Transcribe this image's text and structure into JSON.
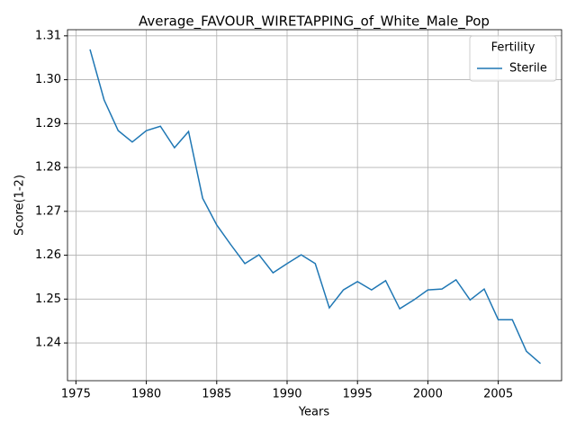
{
  "chart_data": {
    "type": "line",
    "title": "Average_FAVOUR_WIRETAPPING_of_White_Male_Pop",
    "x_label": "Years",
    "y_label": "Score(1-2)",
    "x": [
      1976,
      1977,
      1978,
      1979,
      1980,
      1981,
      1982,
      1983,
      1984,
      1985,
      1986,
      1987,
      1988,
      1989,
      1990,
      1991,
      1992,
      1993,
      1994,
      1995,
      1996,
      1997,
      1998,
      1999,
      2000,
      2001,
      2002,
      2003,
      2004,
      2005,
      2006,
      2007,
      2008
    ],
    "series": [
      {
        "name": "Sterile",
        "color": "#1f77b4",
        "values": [
          1.3069,
          1.2954,
          1.2884,
          1.2858,
          1.2884,
          1.2894,
          1.2845,
          1.2882,
          1.273,
          1.2669,
          1.2624,
          1.2581,
          1.2601,
          1.256,
          1.2581,
          1.2601,
          1.2581,
          1.248,
          1.2521,
          1.254,
          1.2521,
          1.2542,
          1.2478,
          1.2498,
          1.2521,
          1.2523,
          1.2544,
          1.2498,
          1.2523,
          1.2453,
          1.2453,
          1.2381,
          1.2353
        ]
      }
    ],
    "xlim": [
      1974.4,
      2009.5
    ],
    "xticks": [
      1975,
      1980,
      1985,
      1990,
      1995,
      2000,
      2005
    ],
    "ylim": [
      1.2314,
      1.3114
    ],
    "yticks": [
      1.24,
      1.25,
      1.26,
      1.27,
      1.28,
      1.29,
      {
        "value": 1.3,
        "label": "1.30"
      },
      1.31
    ],
    "grid": true,
    "legend_title": "Fertility",
    "legend_position": "upper-right"
  }
}
